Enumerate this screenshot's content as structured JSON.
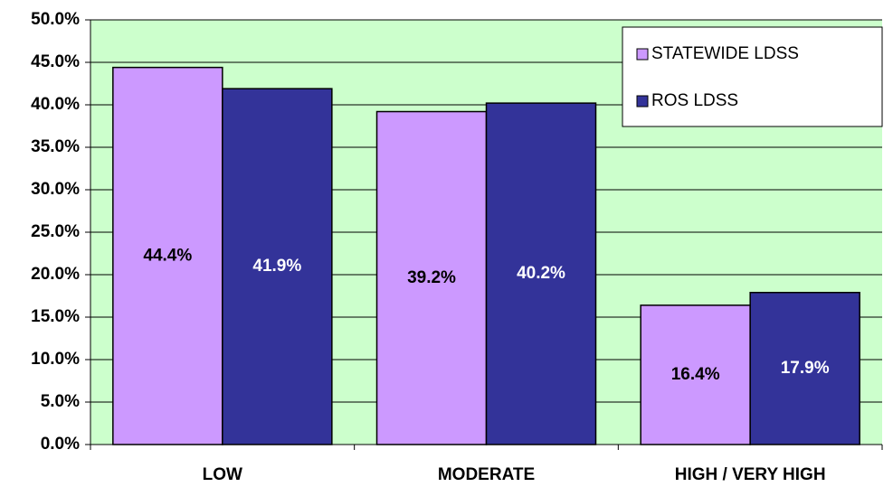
{
  "chart_data": {
    "type": "bar",
    "categories": [
      "LOW",
      "MODERATE",
      "HIGH / VERY HIGH"
    ],
    "series": [
      {
        "name": "STATEWIDE LDSS",
        "color": "#cc99ff",
        "values": [
          44.4,
          39.2,
          16.4
        ],
        "value_labels": [
          "44.4%",
          "39.2%",
          "16.4%"
        ]
      },
      {
        "name": "ROS LDSS",
        "color": "#333399",
        "values": [
          41.9,
          40.2,
          17.9
        ],
        "value_labels": [
          "41.9%",
          "40.2%",
          "17.9%"
        ]
      }
    ],
    "ylim": [
      0,
      50
    ],
    "yticks": [
      {
        "value": 0,
        "label": "0.0%"
      },
      {
        "value": 5,
        "label": "5.0%"
      },
      {
        "value": 10,
        "label": "10.0%"
      },
      {
        "value": 15,
        "label": "15.0%"
      },
      {
        "value": 20,
        "label": "20.0%"
      },
      {
        "value": 25,
        "label": "25.0%"
      },
      {
        "value": 30,
        "label": "30.0%"
      },
      {
        "value": 35,
        "label": "35.0%"
      },
      {
        "value": 40,
        "label": "40.0%"
      },
      {
        "value": 45,
        "label": "45.0%"
      },
      {
        "value": 50,
        "label": "50.0%"
      }
    ],
    "grid": true,
    "legend": "upper right",
    "background": "#ccffcc"
  }
}
